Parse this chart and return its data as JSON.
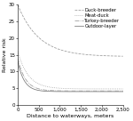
{
  "xlabel": "Distance to waterways, meters",
  "ylabel": "Relative risk",
  "xlim": [
    0,
    2500
  ],
  "ylim": [
    0,
    30
  ],
  "yticks": [
    0,
    5,
    10,
    15,
    20,
    25,
    30
  ],
  "xticks": [
    0,
    500,
    1000,
    1500,
    2000,
    2500
  ],
  "curves": [
    {
      "label": "Duck-breeder",
      "linestyle": "--",
      "color": "#999999",
      "peak": 30,
      "asymptote": 14.5,
      "decay": 0.002
    },
    {
      "label": "Meat-duck",
      "linestyle": ":",
      "color": "#999999",
      "peak": 16,
      "asymptote": 4.8,
      "decay": 0.004
    },
    {
      "label": "Turkey-breeder",
      "linestyle": "-.",
      "color": "#999999",
      "peak": 14,
      "asymptote": 4.2,
      "decay": 0.0055
    },
    {
      "label": "Outdoor-layer",
      "linestyle": "-",
      "color": "#777777",
      "peak": 13,
      "asymptote": 4.0,
      "decay": 0.0065
    }
  ],
  "background_color": "#ffffff",
  "tick_fontsize": 4.0,
  "label_fontsize": 4.5,
  "legend_fontsize": 3.8,
  "linewidth": 0.55
}
